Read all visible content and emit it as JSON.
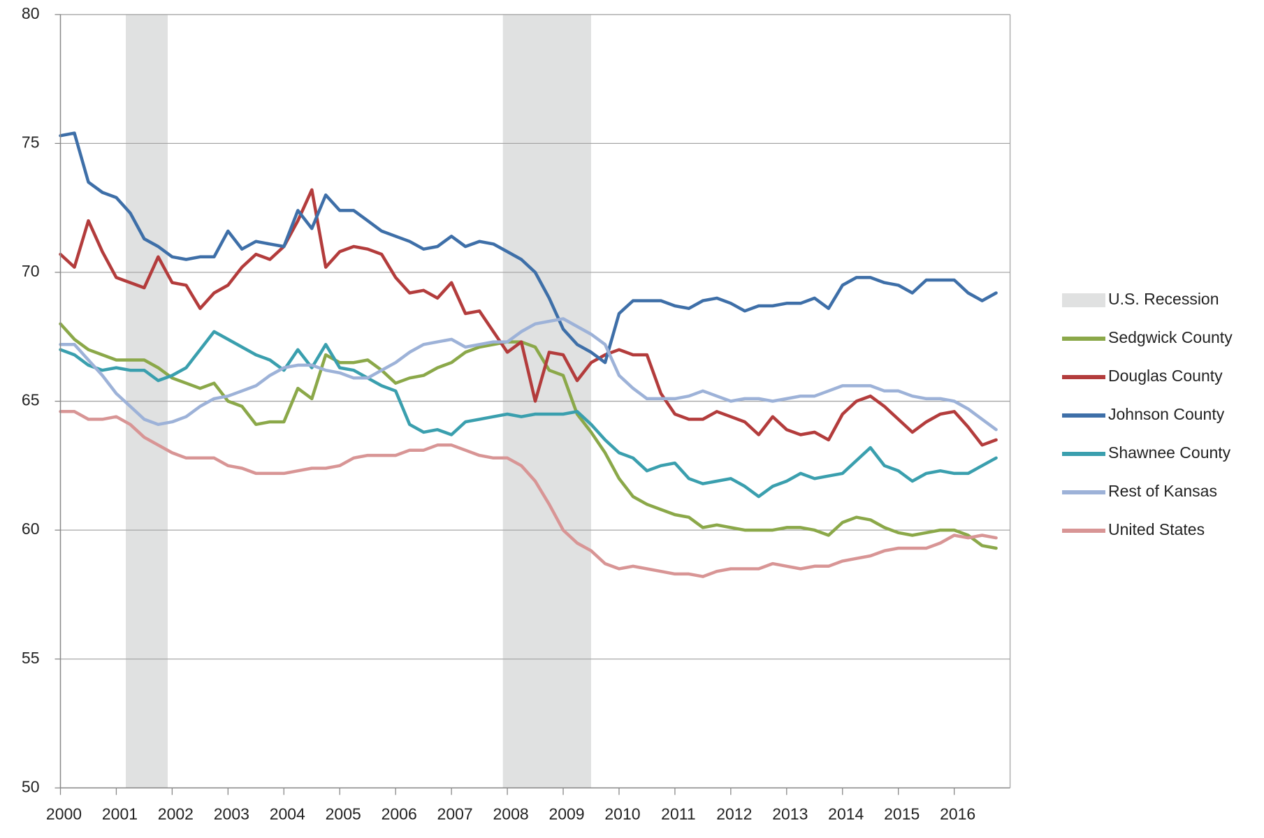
{
  "chart_data": {
    "type": "line",
    "x": [
      2000,
      2000.25,
      2000.5,
      2000.75,
      2001,
      2001.25,
      2001.5,
      2001.75,
      2002,
      2002.25,
      2002.5,
      2002.75,
      2003,
      2003.25,
      2003.5,
      2003.75,
      2004,
      2004.25,
      2004.5,
      2004.75,
      2005,
      2005.25,
      2005.5,
      2005.75,
      2006,
      2006.25,
      2006.5,
      2006.75,
      2007,
      2007.25,
      2007.5,
      2007.75,
      2008,
      2008.25,
      2008.5,
      2008.75,
      2009,
      2009.25,
      2009.5,
      2009.75,
      2010,
      2010.25,
      2010.5,
      2010.75,
      2011,
      2011.25,
      2011.5,
      2011.75,
      2012,
      2012.25,
      2012.5,
      2012.75,
      2013,
      2013.25,
      2013.5,
      2013.75,
      2014,
      2014.25,
      2014.5,
      2014.75,
      2015,
      2015.25,
      2015.5,
      2015.75,
      2016,
      2016.25,
      2016.5,
      2016.75
    ],
    "xlim": [
      2000,
      2017
    ],
    "xticks": [
      2000,
      2001,
      2002,
      2003,
      2004,
      2005,
      2006,
      2007,
      2008,
      2009,
      2010,
      2011,
      2012,
      2013,
      2014,
      2015,
      2016
    ],
    "ylim": [
      50,
      80
    ],
    "yticks": [
      50,
      55,
      60,
      65,
      70,
      75,
      80
    ],
    "grid": true,
    "legend": "right",
    "recession_label": "U.S. Recession",
    "recession_color": "#e0e1e1",
    "recessions": [
      {
        "start": 2001.17,
        "end": 2001.92
      },
      {
        "start": 2007.92,
        "end": 2009.5
      }
    ],
    "series": [
      {
        "name": "Sedgwick County",
        "color": "#8ba849",
        "values": [
          68.0,
          67.4,
          67.0,
          66.8,
          66.6,
          66.6,
          66.6,
          66.3,
          65.9,
          65.7,
          65.5,
          65.7,
          65.0,
          64.8,
          64.1,
          64.2,
          64.2,
          65.5,
          65.1,
          66.8,
          66.5,
          66.5,
          66.6,
          66.2,
          65.7,
          65.9,
          66.0,
          66.3,
          66.5,
          66.9,
          67.1,
          67.2,
          67.3,
          67.3,
          67.1,
          66.2,
          66.0,
          64.5,
          63.8,
          63.0,
          62.0,
          61.3,
          61.0,
          60.8,
          60.6,
          60.5,
          60.1,
          60.2,
          60.1,
          60.0,
          60.0,
          60.0,
          60.1,
          60.1,
          60.0,
          59.8,
          60.3,
          60.5,
          60.4,
          60.1,
          59.9,
          59.8,
          59.9,
          60.0,
          60.0,
          59.8,
          59.4,
          59.3
        ]
      },
      {
        "name": "Douglas County",
        "color": "#b33c3c",
        "values": [
          70.7,
          70.2,
          72.0,
          70.8,
          69.8,
          69.6,
          69.4,
          70.6,
          69.6,
          69.5,
          68.6,
          69.2,
          69.5,
          70.2,
          70.7,
          70.5,
          71.0,
          72.0,
          73.2,
          70.2,
          70.8,
          71.0,
          70.9,
          70.7,
          69.8,
          69.2,
          69.3,
          69.0,
          69.6,
          68.4,
          68.5,
          67.7,
          66.9,
          67.3,
          65.0,
          66.9,
          66.8,
          65.8,
          66.5,
          66.8,
          67.0,
          66.8,
          66.8,
          65.3,
          64.5,
          64.3,
          64.3,
          64.6,
          64.4,
          64.2,
          63.7,
          64.4,
          63.9,
          63.7,
          63.8,
          63.5,
          64.5,
          65.0,
          65.2,
          64.8,
          64.3,
          63.8,
          64.2,
          64.5,
          64.6,
          64.0,
          63.3,
          63.5
        ]
      },
      {
        "name": "Johnson County",
        "color": "#3e6fa8",
        "values": [
          75.3,
          75.4,
          73.5,
          73.1,
          72.9,
          72.3,
          71.3,
          71.0,
          70.6,
          70.5,
          70.6,
          70.6,
          71.6,
          70.9,
          71.2,
          71.1,
          71.0,
          72.4,
          71.7,
          73.0,
          72.4,
          72.4,
          72.0,
          71.6,
          71.4,
          71.2,
          70.9,
          71.0,
          71.4,
          71.0,
          71.2,
          71.1,
          70.8,
          70.5,
          70.0,
          69.0,
          67.8,
          67.2,
          66.9,
          66.5,
          68.4,
          68.9,
          68.9,
          68.9,
          68.7,
          68.6,
          68.9,
          69.0,
          68.8,
          68.5,
          68.7,
          68.7,
          68.8,
          68.8,
          69.0,
          68.6,
          69.5,
          69.8,
          69.8,
          69.6,
          69.5,
          69.2,
          69.7,
          69.7,
          69.7,
          69.2,
          68.9,
          69.2
        ]
      },
      {
        "name": "Shawnee County",
        "color": "#3a9fae",
        "values": [
          67.0,
          66.8,
          66.4,
          66.2,
          66.3,
          66.2,
          66.2,
          65.8,
          66.0,
          66.3,
          67.0,
          67.7,
          67.4,
          67.1,
          66.8,
          66.6,
          66.2,
          67.0,
          66.3,
          67.2,
          66.3,
          66.2,
          65.9,
          65.6,
          65.4,
          64.1,
          63.8,
          63.9,
          63.7,
          64.2,
          64.3,
          64.4,
          64.5,
          64.4,
          64.5,
          64.5,
          64.5,
          64.6,
          64.1,
          63.5,
          63.0,
          62.8,
          62.3,
          62.5,
          62.6,
          62.0,
          61.8,
          61.9,
          62.0,
          61.7,
          61.3,
          61.7,
          61.9,
          62.2,
          62.0,
          62.1,
          62.2,
          62.7,
          63.2,
          62.5,
          62.3,
          61.9,
          62.2,
          62.3,
          62.2,
          62.2,
          62.5,
          62.8
        ]
      },
      {
        "name": "Rest of Kansas",
        "color": "#9db2d8",
        "values": [
          67.2,
          67.2,
          66.6,
          66.0,
          65.3,
          64.8,
          64.3,
          64.1,
          64.2,
          64.4,
          64.8,
          65.1,
          65.2,
          65.4,
          65.6,
          66.0,
          66.3,
          66.4,
          66.4,
          66.2,
          66.1,
          65.9,
          65.9,
          66.2,
          66.5,
          66.9,
          67.2,
          67.3,
          67.4,
          67.1,
          67.2,
          67.3,
          67.3,
          67.7,
          68.0,
          68.1,
          68.2,
          67.9,
          67.6,
          67.2,
          66.0,
          65.5,
          65.1,
          65.1,
          65.1,
          65.2,
          65.4,
          65.2,
          65.0,
          65.1,
          65.1,
          65.0,
          65.1,
          65.2,
          65.2,
          65.4,
          65.6,
          65.6,
          65.6,
          65.4,
          65.4,
          65.2,
          65.1,
          65.1,
          65.0,
          64.7,
          64.3,
          63.9
        ]
      },
      {
        "name": "United States",
        "color": "#d89595",
        "values": [
          64.6,
          64.6,
          64.3,
          64.3,
          64.4,
          64.1,
          63.6,
          63.3,
          63.0,
          62.8,
          62.8,
          62.8,
          62.5,
          62.4,
          62.2,
          62.2,
          62.2,
          62.3,
          62.4,
          62.4,
          62.5,
          62.8,
          62.9,
          62.9,
          62.9,
          63.1,
          63.1,
          63.3,
          63.3,
          63.1,
          62.9,
          62.8,
          62.8,
          62.5,
          61.9,
          61.0,
          60.0,
          59.5,
          59.2,
          58.7,
          58.5,
          58.6,
          58.5,
          58.4,
          58.3,
          58.3,
          58.2,
          58.4,
          58.5,
          58.5,
          58.5,
          58.7,
          58.6,
          58.5,
          58.6,
          58.6,
          58.8,
          58.9,
          59.0,
          59.2,
          59.3,
          59.3,
          59.3,
          59.5,
          59.8,
          59.7,
          59.8,
          59.7
        ]
      }
    ]
  }
}
